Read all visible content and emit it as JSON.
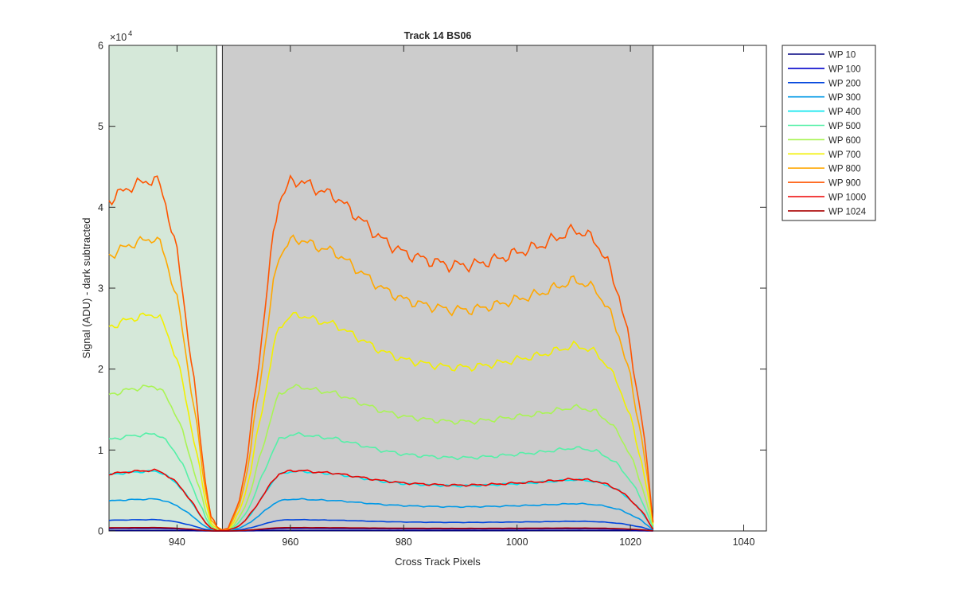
{
  "chart_data": {
    "type": "line",
    "title": "Track 14  BS06",
    "xlabel": "Cross Track Pixels",
    "ylabel": "Signal (ADU) - dark subtracted",
    "y_exponent_label": "×10",
    "y_exponent_power": "4",
    "xlim": [
      928,
      1044
    ],
    "ylim": [
      0,
      60000
    ],
    "x_ticks": [
      940,
      960,
      980,
      1000,
      1020,
      1040
    ],
    "x_tick_labels": [
      "940",
      "960",
      "980",
      "1000",
      "1020",
      "1040"
    ],
    "y_ticks": [
      0,
      10000,
      20000,
      30000,
      40000,
      50000,
      60000
    ],
    "y_tick_labels": [
      "0",
      "1",
      "2",
      "3",
      "4",
      "5",
      "6"
    ],
    "grid": false,
    "legend_position": "outside-top-right",
    "shaded_regions": [
      {
        "x": [
          928,
          947
        ],
        "color": "#d5e8d9"
      },
      {
        "x": [
          948,
          1024
        ],
        "color": "#cccccc"
      }
    ],
    "profile_knots": [
      [
        928,
        0.94
      ],
      [
        930,
        0.96
      ],
      [
        932,
        0.98
      ],
      [
        934,
        0.99
      ],
      [
        936,
        1.0
      ],
      [
        937,
        0.98
      ],
      [
        938,
        0.93
      ],
      [
        939,
        0.86
      ],
      [
        940,
        0.79
      ],
      [
        941,
        0.68
      ],
      [
        942,
        0.55
      ],
      [
        943,
        0.42
      ],
      [
        944,
        0.28
      ],
      [
        945,
        0.14
      ],
      [
        946,
        0.04
      ],
      [
        947,
        0.01
      ],
      [
        948,
        0.005
      ],
      [
        949,
        0.01
      ],
      [
        950,
        0.04
      ],
      [
        951,
        0.09
      ],
      [
        952,
        0.17
      ],
      [
        953,
        0.28
      ],
      [
        954,
        0.42
      ],
      [
        955,
        0.56
      ],
      [
        956,
        0.7
      ],
      [
        957,
        0.84
      ],
      [
        958,
        0.94
      ],
      [
        960,
        0.99
      ],
      [
        962,
        0.995
      ],
      [
        964,
        0.975
      ],
      [
        968,
        0.95
      ],
      [
        972,
        0.89
      ],
      [
        976,
        0.83
      ],
      [
        980,
        0.79
      ],
      [
        984,
        0.77
      ],
      [
        988,
        0.755
      ],
      [
        992,
        0.755
      ],
      [
        996,
        0.77
      ],
      [
        1000,
        0.79
      ],
      [
        1004,
        0.81
      ],
      [
        1008,
        0.84
      ],
      [
        1010,
        0.855
      ],
      [
        1012,
        0.845
      ],
      [
        1014,
        0.82
      ],
      [
        1016,
        0.76
      ],
      [
        1018,
        0.67
      ],
      [
        1020,
        0.52
      ],
      [
        1022,
        0.32
      ],
      [
        1023,
        0.18
      ],
      [
        1024,
        0.03
      ]
    ],
    "series": [
      {
        "name": "WP 10",
        "color": "#000080",
        "peak": 60
      },
      {
        "name": "WP 100",
        "color": "#0000cc",
        "peak": 320
      },
      {
        "name": "WP 200",
        "color": "#0044dd",
        "peak": 1400
      },
      {
        "name": "WP 300",
        "color": "#0099e6",
        "peak": 3950
      },
      {
        "name": "WP 400",
        "color": "#00e5ee",
        "peak": 7400
      },
      {
        "name": "WP 500",
        "color": "#55f0a8",
        "peak": 12000
      },
      {
        "name": "WP 600",
        "color": "#aaf455",
        "peak": 17900
      },
      {
        "name": "WP 700",
        "color": "#f2f000",
        "peak": 26800
      },
      {
        "name": "WP 800",
        "color": "#ffa800",
        "peak": 36200
      },
      {
        "name": "WP 900",
        "color": "#ff5500",
        "peak": 43500
      },
      {
        "name": "WP 1000",
        "color": "#ee0000",
        "peak": 7500
      },
      {
        "name": "WP 1024",
        "color": "#aa0000",
        "peak": 420
      }
    ]
  }
}
